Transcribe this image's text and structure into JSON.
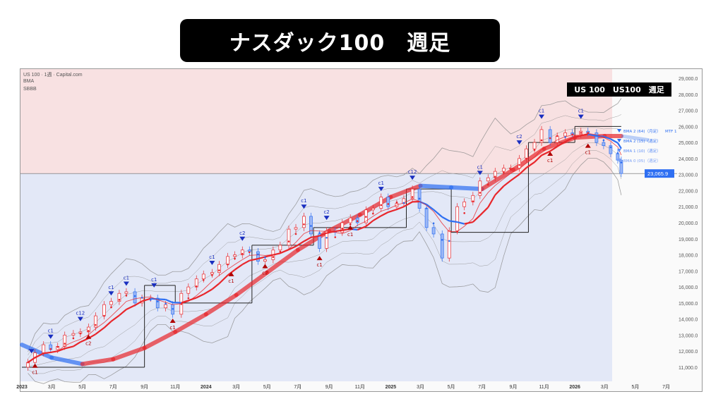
{
  "header": {
    "title": "ナスダック100　週足"
  },
  "chart_info": {
    "symbol_line": "US 100 · 1週 · Capital.com",
    "indicator_1": "BMA",
    "indicator_2": "SBBB",
    "overlay_label": "US 100　US100　週足"
  },
  "colors": {
    "bull": "#e8262b",
    "bear": "#2e6ff2",
    "upper_bg": "#f8e1e2",
    "lower_bg": "#e3e8f7",
    "price_tag": "#2e6ff2",
    "band": "#8a8a8a",
    "step": "#222222"
  },
  "chart_data": {
    "type": "candlestick",
    "ylim": [
      10500,
      29600
    ],
    "y_ticks": [
      "11,000.0",
      "12,000.0",
      "13,000.0",
      "14,000.0",
      "15,000.0",
      "16,000.0",
      "17,000.0",
      "18,000.0",
      "19,000.0",
      "20,000.0",
      "21,000.0",
      "22,000.0",
      "23,000.0",
      "24,000.0",
      "25,000.0",
      "26,000.0",
      "27,000.0",
      "28,000.0",
      "29,000.0"
    ],
    "x_ticks": [
      {
        "date": "2023-01-01",
        "label": "2023",
        "bold": true
      },
      {
        "date": "2023-03-01",
        "label": "3月"
      },
      {
        "date": "2023-05-01",
        "label": "5月"
      },
      {
        "date": "2023-07-01",
        "label": "7月"
      },
      {
        "date": "2023-09-01",
        "label": "9月"
      },
      {
        "date": "2023-11-01",
        "label": "11月"
      },
      {
        "date": "2024-01-01",
        "label": "2024",
        "bold": true
      },
      {
        "date": "2024-03-01",
        "label": "3月"
      },
      {
        "date": "2024-05-01",
        "label": "5月"
      },
      {
        "date": "2024-07-01",
        "label": "7月"
      },
      {
        "date": "2024-09-01",
        "label": "9月"
      },
      {
        "date": "2024-11-01",
        "label": "11月"
      },
      {
        "date": "2025-01-01",
        "label": "2025",
        "bold": true
      },
      {
        "date": "2025-03-01",
        "label": "3月"
      },
      {
        "date": "2025-05-01",
        "label": "5月"
      },
      {
        "date": "2025-07-01",
        "label": "7月"
      },
      {
        "date": "2025-09-01",
        "label": "9月"
      },
      {
        "date": "2025-11-01",
        "label": "11月"
      },
      {
        "date": "2026-01-01",
        "label": "2026",
        "bold": true
      },
      {
        "date": "2026-03-01",
        "label": "3月"
      },
      {
        "date": "2026-05-01",
        "label": "5月"
      },
      {
        "date": "2026-07-01",
        "label": "7月"
      }
    ],
    "last_price": 23065.9,
    "last_price_label": "23,065.9",
    "closes": [
      [
        "2023-01-13",
        11300
      ],
      [
        "2023-01-27",
        11900
      ],
      [
        "2023-02-13",
        12400
      ],
      [
        "2023-02-27",
        12100
      ],
      [
        "2023-03-13",
        12300
      ],
      [
        "2023-03-27",
        13000
      ],
      [
        "2023-04-13",
        13100
      ],
      [
        "2023-04-27",
        13200
      ],
      [
        "2023-05-13",
        13500
      ],
      [
        "2023-05-27",
        14200
      ],
      [
        "2023-06-13",
        14900
      ],
      [
        "2023-06-27",
        15100
      ],
      [
        "2023-07-13",
        15600
      ],
      [
        "2023-07-27",
        15700
      ],
      [
        "2023-08-13",
        15000
      ],
      [
        "2023-08-27",
        15300
      ],
      [
        "2023-09-13",
        15300
      ],
      [
        "2023-09-27",
        14700
      ],
      [
        "2023-10-13",
        14900
      ],
      [
        "2023-10-27",
        14300
      ],
      [
        "2023-11-13",
        15600
      ],
      [
        "2023-11-27",
        16000
      ],
      [
        "2023-12-13",
        16500
      ],
      [
        "2023-12-27",
        16800
      ],
      [
        "2024-01-13",
        16900
      ],
      [
        "2024-01-27",
        17400
      ],
      [
        "2024-02-13",
        17900
      ],
      [
        "2024-02-27",
        18000
      ],
      [
        "2024-03-13",
        18300
      ],
      [
        "2024-03-27",
        18200
      ],
      [
        "2024-04-13",
        17600
      ],
      [
        "2024-04-27",
        17700
      ],
      [
        "2024-05-13",
        18300
      ],
      [
        "2024-05-27",
        18600
      ],
      [
        "2024-06-13",
        19600
      ],
      [
        "2024-06-27",
        19700
      ],
      [
        "2024-07-13",
        20400
      ],
      [
        "2024-07-27",
        19300
      ],
      [
        "2024-08-13",
        18400
      ],
      [
        "2024-08-27",
        19500
      ],
      [
        "2024-09-13",
        19400
      ],
      [
        "2024-09-27",
        20000
      ],
      [
        "2024-10-13",
        20300
      ],
      [
        "2024-10-27",
        20000
      ],
      [
        "2024-11-13",
        20800
      ],
      [
        "2024-11-27",
        20900
      ],
      [
        "2024-12-13",
        21600
      ],
      [
        "2024-12-27",
        21000
      ],
      [
        "2025-01-13",
        21200
      ],
      [
        "2025-01-27",
        21500
      ],
      [
        "2025-02-13",
        22100
      ],
      [
        "2025-02-27",
        20900
      ],
      [
        "2025-03-13",
        19700
      ],
      [
        "2025-03-27",
        19300
      ],
      [
        "2025-04-13",
        17800
      ],
      [
        "2025-04-27",
        19500
      ],
      [
        "2025-05-13",
        21000
      ],
      [
        "2025-05-27",
        21300
      ],
      [
        "2025-06-13",
        21700
      ],
      [
        "2025-06-27",
        22600
      ],
      [
        "2025-07-13",
        22800
      ],
      [
        "2025-07-27",
        23200
      ],
      [
        "2025-08-13",
        23400
      ],
      [
        "2025-08-27",
        23400
      ],
      [
        "2025-09-13",
        24000
      ],
      [
        "2025-09-27",
        24600
      ],
      [
        "2025-10-13",
        25000
      ],
      [
        "2025-10-27",
        25800
      ],
      [
        "2025-11-13",
        25000
      ],
      [
        "2025-11-27",
        25400
      ],
      [
        "2025-12-13",
        25600
      ],
      [
        "2025-12-27",
        25500
      ],
      [
        "2026-01-13",
        25700
      ],
      [
        "2026-01-27",
        25600
      ],
      [
        "2026-02-13",
        25000
      ],
      [
        "2026-02-27",
        24800
      ],
      [
        "2026-03-13",
        24300
      ],
      [
        "2026-03-27",
        23900
      ],
      [
        "2026-04-03",
        23065.9
      ]
    ],
    "bma_monthly": [
      [
        "2023-01-01",
        12400
      ],
      [
        "2023-03-01",
        11600
      ],
      [
        "2023-05-01",
        11200
      ],
      [
        "2023-07-01",
        11500
      ],
      [
        "2023-09-01",
        12200
      ],
      [
        "2023-11-01",
        13200
      ],
      [
        "2024-01-01",
        14300
      ],
      [
        "2024-03-01",
        15500
      ],
      [
        "2024-05-01",
        16900
      ],
      [
        "2024-07-01",
        18300
      ],
      [
        "2024-09-01",
        19500
      ],
      [
        "2024-11-01",
        20500
      ],
      [
        "2025-01-01",
        21600
      ],
      [
        "2025-03-01",
        22300
      ],
      [
        "2025-05-01",
        22200
      ],
      [
        "2025-07-01",
        22100
      ],
      [
        "2025-09-01",
        23300
      ],
      [
        "2025-11-01",
        24600
      ],
      [
        "2026-01-01",
        25300
      ],
      [
        "2026-03-01",
        25400
      ],
      [
        "2026-04-03",
        25400
      ]
    ],
    "step_levels": [
      [
        "2023-01-01",
        "2023-09-01",
        11000
      ],
      [
        "2023-09-01",
        "2023-11-01",
        16100
      ],
      [
        "2023-11-01",
        "2024-04-01",
        15000
      ],
      [
        "2024-04-01",
        "2024-08-01",
        18600
      ],
      [
        "2024-08-01",
        "2025-02-01",
        19700
      ],
      [
        "2025-02-01",
        "2025-05-01",
        22100
      ],
      [
        "2025-05-01",
        "2025-10-01",
        19400
      ],
      [
        "2025-10-01",
        "2026-01-01",
        25000
      ],
      [
        "2026-01-01",
        "2026-04-03",
        26000
      ]
    ],
    "signals": [
      [
        "2023-01-20",
        "down",
        "",
        12000
      ],
      [
        "2023-01-27",
        "up",
        "c1",
        11100
      ],
      [
        "2023-02-27",
        "down",
        "c1",
        12900
      ],
      [
        "2023-04-27",
        "down",
        "c12",
        14000
      ],
      [
        "2023-05-13",
        "up",
        "c2",
        12900
      ],
      [
        "2023-06-27",
        "down",
        "c1",
        15600
      ],
      [
        "2023-07-27",
        "down",
        "c1",
        16200
      ],
      [
        "2023-09-20",
        "down",
        "c1",
        16100
      ],
      [
        "2023-10-27",
        "up",
        "c1",
        13900
      ],
      [
        "2024-01-13",
        "down",
        "c1",
        17500
      ],
      [
        "2024-02-20",
        "up",
        "c1",
        16800
      ],
      [
        "2024-03-13",
        "down",
        "c2",
        19000
      ],
      [
        "2024-04-27",
        "up",
        "c2",
        17300
      ],
      [
        "2024-07-13",
        "down",
        "c1",
        21000
      ],
      [
        "2024-08-13",
        "up",
        "c1",
        17800
      ],
      [
        "2024-08-27",
        "down",
        "c2",
        20300
      ],
      [
        "2024-10-13",
        "up",
        "c1",
        19700
      ],
      [
        "2024-12-13",
        "down",
        "c1",
        22100
      ],
      [
        "2025-02-13",
        "down",
        "c12",
        22800
      ],
      [
        "2025-06-27",
        "down",
        "c1",
        23100
      ],
      [
        "2025-09-13",
        "down",
        "c2",
        25000
      ],
      [
        "2025-10-27",
        "down",
        "c1",
        26600
      ],
      [
        "2025-11-13",
        "up",
        "c1",
        24300
      ],
      [
        "2026-01-13",
        "down",
        "c1",
        26600
      ],
      [
        "2026-01-27",
        "up",
        "c1",
        24800
      ]
    ],
    "legend": [
      {
        "label": "BMA 2 (64)（月足）",
        "suffix": "MTF 1"
      },
      {
        "label": "BMA 2 (15)（週足）",
        "suffix": ""
      },
      {
        "label": "BMA 1 (10)（週足）",
        "suffix": ""
      },
      {
        "label": "BMA 0 (05)（週足）",
        "suffix": ""
      }
    ]
  }
}
